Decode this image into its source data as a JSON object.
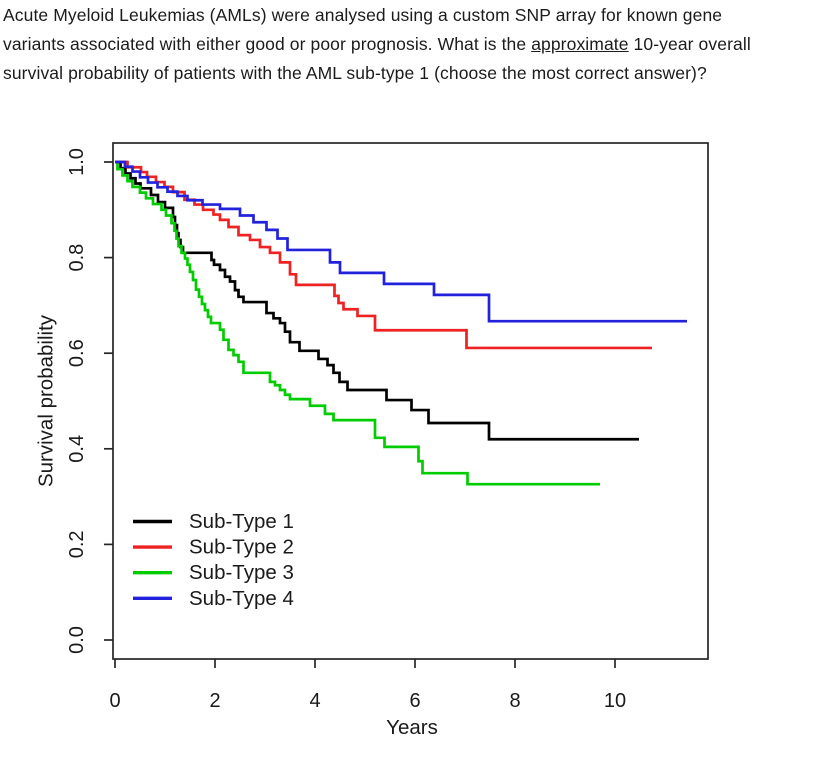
{
  "question": {
    "part1": "Acute Myeloid Leukemias (AMLs) were analysed using a custom SNP array for known gene variants associated with either good or poor prognosis. What is the ",
    "underlined_word": "approximate",
    "part2": " 10-year overall survival probability of patients with the AML sub-type 1 (choose the most correct answer)?"
  },
  "chart_data": {
    "type": "line",
    "style": "kaplan-meier-step",
    "title": "",
    "xlabel": "Years",
    "ylabel": "Survival probability",
    "xlim": [
      0,
      11.9
    ],
    "ylim": [
      0,
      1.0
    ],
    "xticks": [
      "0",
      "2",
      "4",
      "6",
      "8",
      "10"
    ],
    "yticks": [
      "1.0",
      "0.8",
      "0.6",
      "0.4",
      "0.2",
      "0.0"
    ],
    "grid": false,
    "legend_position": "inside-bottom-left",
    "axis_color": "#262626",
    "text_color": "#1a1a1a",
    "subtype1_10yr_survival_approx": 0.42,
    "series": [
      {
        "name": "Sub-Type 1",
        "color": "#000000",
        "end_t": 10.48,
        "points": [
          [
            0,
            1.0
          ],
          [
            0.11,
            0.987
          ],
          [
            0.21,
            0.976
          ],
          [
            0.31,
            0.966
          ],
          [
            0.41,
            0.955
          ],
          [
            0.51,
            0.945
          ],
          [
            0.72,
            0.931
          ],
          [
            0.86,
            0.916
          ],
          [
            1.0,
            0.904
          ],
          [
            1.16,
            0.885
          ],
          [
            1.2,
            0.868
          ],
          [
            1.24,
            0.851
          ],
          [
            1.27,
            0.837
          ],
          [
            1.31,
            0.822
          ],
          [
            1.36,
            0.81
          ],
          [
            1.93,
            0.795
          ],
          [
            1.98,
            0.785
          ],
          [
            2.1,
            0.774
          ],
          [
            2.2,
            0.76
          ],
          [
            2.3,
            0.75
          ],
          [
            2.4,
            0.732
          ],
          [
            2.47,
            0.718
          ],
          [
            2.57,
            0.707
          ],
          [
            3.03,
            0.684
          ],
          [
            3.17,
            0.673
          ],
          [
            3.3,
            0.663
          ],
          [
            3.4,
            0.645
          ],
          [
            3.5,
            0.623
          ],
          [
            3.69,
            0.605
          ],
          [
            4.07,
            0.588
          ],
          [
            4.25,
            0.575
          ],
          [
            4.37,
            0.559
          ],
          [
            4.49,
            0.54
          ],
          [
            4.65,
            0.523
          ],
          [
            5.43,
            0.502
          ],
          [
            5.93,
            0.481
          ],
          [
            6.27,
            0.454
          ],
          [
            7.48,
            0.42
          ]
        ]
      },
      {
        "name": "Sub-Type 2",
        "color": "#ee2222",
        "end_t": 10.74,
        "points": [
          [
            0,
            1.0
          ],
          [
            0.25,
            0.989
          ],
          [
            0.52,
            0.979
          ],
          [
            0.64,
            0.969
          ],
          [
            0.82,
            0.958
          ],
          [
            0.99,
            0.948
          ],
          [
            1.16,
            0.937
          ],
          [
            1.39,
            0.921
          ],
          [
            1.59,
            0.911
          ],
          [
            1.76,
            0.9
          ],
          [
            1.97,
            0.89
          ],
          [
            2.1,
            0.879
          ],
          [
            2.27,
            0.864
          ],
          [
            2.47,
            0.847
          ],
          [
            2.7,
            0.837
          ],
          [
            2.9,
            0.822
          ],
          [
            3.1,
            0.81
          ],
          [
            3.3,
            0.79
          ],
          [
            3.5,
            0.765
          ],
          [
            3.62,
            0.743
          ],
          [
            4.39,
            0.72
          ],
          [
            4.47,
            0.705
          ],
          [
            4.57,
            0.692
          ],
          [
            4.85,
            0.678
          ],
          [
            5.2,
            0.648
          ],
          [
            7.03,
            0.611
          ]
        ]
      },
      {
        "name": "Sub-Type 3",
        "color": "#00cc00",
        "end_t": 9.7,
        "points": [
          [
            0,
            1.0
          ],
          [
            0.05,
            0.985
          ],
          [
            0.15,
            0.972
          ],
          [
            0.25,
            0.96
          ],
          [
            0.35,
            0.948
          ],
          [
            0.5,
            0.936
          ],
          [
            0.62,
            0.924
          ],
          [
            0.76,
            0.912
          ],
          [
            0.93,
            0.9
          ],
          [
            1.02,
            0.888
          ],
          [
            1.13,
            0.872
          ],
          [
            1.19,
            0.856
          ],
          [
            1.23,
            0.84
          ],
          [
            1.27,
            0.824
          ],
          [
            1.33,
            0.81
          ],
          [
            1.4,
            0.798
          ],
          [
            1.45,
            0.785
          ],
          [
            1.5,
            0.77
          ],
          [
            1.56,
            0.753
          ],
          [
            1.62,
            0.733
          ],
          [
            1.68,
            0.718
          ],
          [
            1.74,
            0.703
          ],
          [
            1.8,
            0.69
          ],
          [
            1.86,
            0.676
          ],
          [
            1.92,
            0.663
          ],
          [
            2.1,
            0.649
          ],
          [
            2.17,
            0.628
          ],
          [
            2.27,
            0.607
          ],
          [
            2.37,
            0.596
          ],
          [
            2.47,
            0.582
          ],
          [
            2.57,
            0.559
          ],
          [
            3.1,
            0.54
          ],
          [
            3.2,
            0.533
          ],
          [
            3.3,
            0.523
          ],
          [
            3.4,
            0.513
          ],
          [
            3.5,
            0.504
          ],
          [
            3.9,
            0.49
          ],
          [
            4.2,
            0.473
          ],
          [
            4.37,
            0.46
          ],
          [
            5.2,
            0.423
          ],
          [
            5.39,
            0.404
          ],
          [
            6.07,
            0.374
          ],
          [
            6.15,
            0.349
          ],
          [
            7.05,
            0.326
          ]
        ]
      },
      {
        "name": "Sub-Type 4",
        "color": "#2222dd",
        "end_t": 11.44,
        "points": [
          [
            0,
            1.0
          ],
          [
            0.2,
            0.99
          ],
          [
            0.35,
            0.98
          ],
          [
            0.5,
            0.968
          ],
          [
            0.66,
            0.957
          ],
          [
            0.85,
            0.947
          ],
          [
            1.05,
            0.938
          ],
          [
            1.25,
            0.929
          ],
          [
            1.45,
            0.92
          ],
          [
            1.75,
            0.911
          ],
          [
            2.1,
            0.902
          ],
          [
            2.5,
            0.888
          ],
          [
            2.77,
            0.874
          ],
          [
            3.03,
            0.858
          ],
          [
            3.25,
            0.84
          ],
          [
            3.45,
            0.816
          ],
          [
            4.3,
            0.79
          ],
          [
            4.5,
            0.768
          ],
          [
            5.38,
            0.745
          ],
          [
            6.38,
            0.722
          ],
          [
            7.48,
            0.667
          ]
        ]
      }
    ]
  }
}
